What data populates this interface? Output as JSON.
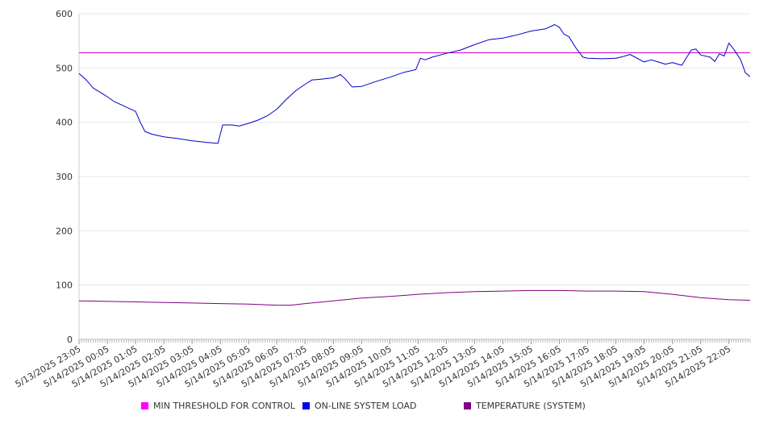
{
  "chart_data": {
    "type": "line",
    "ylim": [
      0,
      600
    ],
    "yticks": [
      0,
      100,
      200,
      300,
      400,
      500,
      600
    ],
    "x_tick_labels": [
      "5/13/2025 23:05",
      "5/14/2025 00:05",
      "5/14/2025 01:05",
      "5/14/2025 02:05",
      "5/14/2025 03:05",
      "5/14/2025 04:05",
      "5/14/2025 05:05",
      "5/14/2025 06:05",
      "5/14/2025 07:05",
      "5/14/2025 08:05",
      "5/14/2025 09:05",
      "5/14/2025 10:05",
      "5/14/2025 11:05",
      "5/14/2025 12:05",
      "5/14/2025 13:05",
      "5/14/2025 14:05",
      "5/14/2025 15:05",
      "5/14/2025 16:05",
      "5/14/2025 17:05",
      "5/14/2025 18:05",
      "5/14/2025 19:05",
      "5/14/2025 20:05",
      "5/14/2025 21:05",
      "5/14/2025 22:05"
    ],
    "x_start": "5/13/2025 23:05",
    "x_end": "5/14/2025 22:50",
    "grid": true,
    "legend_position": "bottom",
    "series": [
      {
        "name": "MIN THRESHOLD FOR CONTROL",
        "color": "#cc00cc",
        "points": [
          [
            "5/13/2025 23:05",
            528
          ],
          [
            "5/14/2025 22:50",
            528
          ]
        ]
      },
      {
        "name": "ON-LINE SYSTEM LOAD",
        "color": "#0000cc",
        "points": [
          [
            "5/13/2025 23:05",
            490
          ],
          [
            "5/13/2025 23:20",
            478
          ],
          [
            "5/13/2025 23:35",
            463
          ],
          [
            "5/13/2025 23:50",
            455
          ],
          [
            "5/14/2025 00:05",
            447
          ],
          [
            "5/14/2025 00:20",
            438
          ],
          [
            "5/14/2025 00:35",
            432
          ],
          [
            "5/14/2025 00:50",
            426
          ],
          [
            "5/14/2025 01:05",
            420
          ],
          [
            "5/14/2025 01:15",
            400
          ],
          [
            "5/14/2025 01:25",
            383
          ],
          [
            "5/14/2025 01:40",
            378
          ],
          [
            "5/14/2025 02:05",
            373
          ],
          [
            "5/14/2025 02:35",
            370
          ],
          [
            "5/14/2025 03:05",
            366
          ],
          [
            "5/14/2025 03:35",
            363
          ],
          [
            "5/14/2025 04:00",
            361
          ],
          [
            "5/14/2025 04:10",
            395
          ],
          [
            "5/14/2025 04:30",
            395
          ],
          [
            "5/14/2025 04:45",
            393
          ],
          [
            "5/14/2025 05:05",
            398
          ],
          [
            "5/14/2025 05:25",
            404
          ],
          [
            "5/14/2025 05:45",
            412
          ],
          [
            "5/14/2025 06:05",
            424
          ],
          [
            "5/14/2025 06:25",
            442
          ],
          [
            "5/14/2025 06:45",
            458
          ],
          [
            "5/14/2025 07:05",
            470
          ],
          [
            "5/14/2025 07:20",
            478
          ],
          [
            "5/14/2025 07:35",
            479
          ],
          [
            "5/14/2025 08:05",
            482
          ],
          [
            "5/14/2025 08:20",
            488
          ],
          [
            "5/14/2025 08:30",
            480
          ],
          [
            "5/14/2025 08:45",
            465
          ],
          [
            "5/14/2025 09:05",
            466
          ],
          [
            "5/14/2025 09:35",
            475
          ],
          [
            "5/14/2025 10:05",
            483
          ],
          [
            "5/14/2025 10:35",
            492
          ],
          [
            "5/14/2025 11:00",
            497
          ],
          [
            "5/14/2025 11:10",
            518
          ],
          [
            "5/14/2025 11:20",
            515
          ],
          [
            "5/14/2025 11:35",
            520
          ],
          [
            "5/14/2025 12:05",
            527
          ],
          [
            "5/14/2025 12:35",
            533
          ],
          [
            "5/14/2025 13:05",
            543
          ],
          [
            "5/14/2025 13:35",
            552
          ],
          [
            "5/14/2025 14:05",
            555
          ],
          [
            "5/14/2025 14:35",
            561
          ],
          [
            "5/14/2025 15:05",
            568
          ],
          [
            "5/14/2025 15:35",
            572
          ],
          [
            "5/14/2025 15:55",
            580
          ],
          [
            "5/14/2025 16:05",
            575
          ],
          [
            "5/14/2025 16:15",
            562
          ],
          [
            "5/14/2025 16:25",
            558
          ],
          [
            "5/14/2025 16:40",
            537
          ],
          [
            "5/14/2025 16:55",
            520
          ],
          [
            "5/14/2025 17:05",
            518
          ],
          [
            "5/14/2025 17:35",
            517
          ],
          [
            "5/14/2025 18:05",
            518
          ],
          [
            "5/14/2025 18:20",
            521
          ],
          [
            "5/14/2025 18:35",
            525
          ],
          [
            "5/14/2025 19:05",
            511
          ],
          [
            "5/14/2025 19:20",
            515
          ],
          [
            "5/14/2025 19:35",
            511
          ],
          [
            "5/14/2025 19:50",
            507
          ],
          [
            "5/14/2025 20:05",
            510
          ],
          [
            "5/14/2025 20:25",
            505
          ],
          [
            "5/14/2025 20:45",
            533
          ],
          [
            "5/14/2025 20:55",
            535
          ],
          [
            "5/14/2025 21:05",
            524
          ],
          [
            "5/14/2025 21:25",
            520
          ],
          [
            "5/14/2025 21:35",
            512
          ],
          [
            "5/14/2025 21:45",
            526
          ],
          [
            "5/14/2025 21:55",
            522
          ],
          [
            "5/14/2025 22:05",
            546
          ],
          [
            "5/14/2025 22:15",
            535
          ],
          [
            "5/14/2025 22:30",
            515
          ],
          [
            "5/14/2025 22:40",
            491
          ],
          [
            "5/14/2025 22:50",
            484
          ]
        ]
      },
      {
        "name": "TEMPERATURE (SYSTEM)",
        "color": "#800080",
        "points": [
          [
            "5/13/2025 23:05",
            71
          ],
          [
            "5/14/2025 00:05",
            70
          ],
          [
            "5/14/2025 01:05",
            69
          ],
          [
            "5/14/2025 02:05",
            68
          ],
          [
            "5/14/2025 03:05",
            67
          ],
          [
            "5/14/2025 04:05",
            66
          ],
          [
            "5/14/2025 05:05",
            65
          ],
          [
            "5/14/2025 06:05",
            63
          ],
          [
            "5/14/2025 06:35",
            63
          ],
          [
            "5/14/2025 07:05",
            66
          ],
          [
            "5/14/2025 08:05",
            71
          ],
          [
            "5/14/2025 09:05",
            76
          ],
          [
            "5/14/2025 10:05",
            79
          ],
          [
            "5/14/2025 11:05",
            83
          ],
          [
            "5/14/2025 12:05",
            86
          ],
          [
            "5/14/2025 13:05",
            88
          ],
          [
            "5/14/2025 14:05",
            89
          ],
          [
            "5/14/2025 15:05",
            90
          ],
          [
            "5/14/2025 16:05",
            90
          ],
          [
            "5/14/2025 17:05",
            89
          ],
          [
            "5/14/2025 18:05",
            89
          ],
          [
            "5/14/2025 19:05",
            88
          ],
          [
            "5/14/2025 20:05",
            83
          ],
          [
            "5/14/2025 21:05",
            77
          ],
          [
            "5/14/2025 22:05",
            73
          ],
          [
            "5/14/2025 22:50",
            72
          ]
        ]
      }
    ]
  }
}
